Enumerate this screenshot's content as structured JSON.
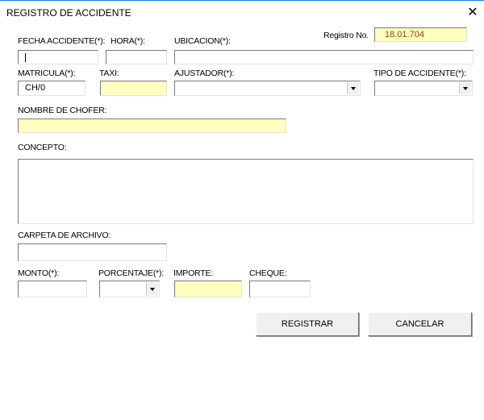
{
  "window": {
    "title": "REGISTRO DE ACCIDENTE",
    "close_icon": "close-x"
  },
  "registro": {
    "label": "Registro No.",
    "value": "18.01.704"
  },
  "fields": {
    "fecha": {
      "label": "FECHA ACCIDENTE(*):",
      "value": ""
    },
    "hora": {
      "label": "HORA(*):",
      "value": ""
    },
    "ubicacion": {
      "label": "UBICACION(*):",
      "value": ""
    },
    "matricula": {
      "label": "MATRICULA(*):",
      "value": "CH/0"
    },
    "taxi": {
      "label": "TAXI:",
      "value": ""
    },
    "ajustador": {
      "label": "AJUSTADOR(*):",
      "value": ""
    },
    "tipo": {
      "label": "TIPO DE ACCIDENTE(*):",
      "value": ""
    },
    "chofer": {
      "label": "NOMBRE DE CHOFER:",
      "value": ""
    },
    "concepto": {
      "label": "CONCEPTO:",
      "value": ""
    },
    "carpeta": {
      "label": "CARPETA DE ARCHIVO:",
      "value": ""
    },
    "monto": {
      "label": "MONTO(*):",
      "value": ""
    },
    "porcentaje": {
      "label": "PORCENTAJE(*):",
      "value": ""
    },
    "importe": {
      "label": "IMPORTE:",
      "value": ""
    },
    "cheque": {
      "label": "CHEQUE:",
      "value": ""
    }
  },
  "buttons": {
    "registrar": "REGISTRAR",
    "cancelar": "CANCELAR"
  },
  "colors": {
    "readonly_field": "#ffffc0",
    "registro_text": "#8b4a00",
    "title_bar_line": "#1a7fd4"
  }
}
